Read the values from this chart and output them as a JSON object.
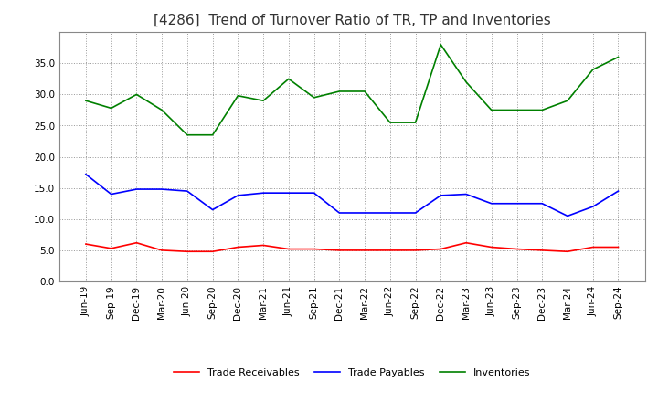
{
  "title": "[4286]  Trend of Turnover Ratio of TR, TP and Inventories",
  "ylim": [
    0,
    40
  ],
  "yticks": [
    0.0,
    5.0,
    10.0,
    15.0,
    20.0,
    25.0,
    30.0,
    35.0
  ],
  "ytick_labels": [
    "0.0",
    "5.0",
    "10.0",
    "15.0",
    "20.0",
    "25.0",
    "30.0",
    "35.0"
  ],
  "x_labels": [
    "Jun-19",
    "Sep-19",
    "Dec-19",
    "Mar-20",
    "Jun-20",
    "Sep-20",
    "Dec-20",
    "Mar-21",
    "Jun-21",
    "Sep-21",
    "Dec-21",
    "Mar-22",
    "Jun-22",
    "Sep-22",
    "Dec-22",
    "Mar-23",
    "Jun-23",
    "Sep-23",
    "Dec-23",
    "Mar-24",
    "Jun-24",
    "Sep-24"
  ],
  "trade_receivables": [
    6.0,
    5.3,
    6.2,
    5.0,
    4.8,
    4.8,
    5.5,
    5.8,
    5.2,
    5.2,
    5.0,
    5.0,
    5.0,
    5.0,
    5.2,
    6.2,
    5.5,
    5.2,
    5.0,
    4.8,
    5.5,
    5.5
  ],
  "trade_payables": [
    17.2,
    14.0,
    14.8,
    14.8,
    14.5,
    11.5,
    13.8,
    14.2,
    14.2,
    14.2,
    11.0,
    11.0,
    11.0,
    11.0,
    13.8,
    14.0,
    12.5,
    12.5,
    12.5,
    10.5,
    12.0,
    14.5
  ],
  "inventories": [
    29.0,
    27.8,
    30.0,
    27.5,
    23.5,
    23.5,
    29.8,
    29.0,
    32.5,
    29.5,
    30.5,
    30.5,
    25.5,
    25.5,
    38.0,
    32.0,
    27.5,
    27.5,
    27.5,
    29.0,
    34.0,
    36.0
  ],
  "color_tr": "#ff0000",
  "color_tp": "#0000ff",
  "color_inv": "#008000",
  "background_color": "#ffffff",
  "grid_color": "#999999",
  "title_fontsize": 11,
  "legend_fontsize": 8,
  "tick_fontsize": 7.5
}
